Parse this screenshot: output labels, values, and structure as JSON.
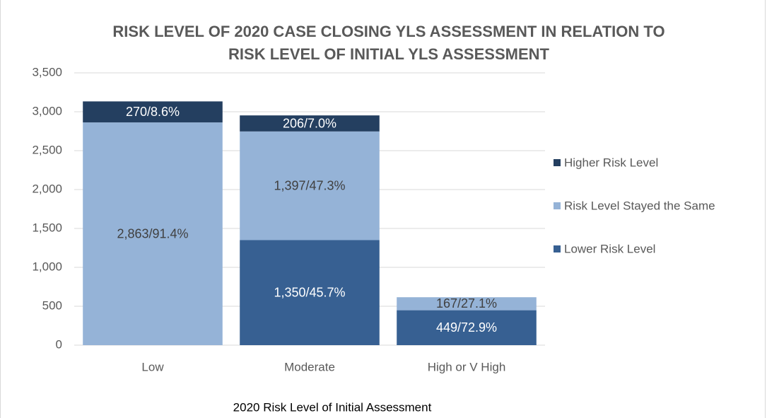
{
  "chart_data": {
    "type": "stacked_bar",
    "title": [
      "RISK LEVEL OF 2020 CASE CLOSING YLS ASSESSMENT IN RELATION TO",
      "RISK LEVEL OF INITIAL YLS ASSESSMENT"
    ],
    "x_label": "2020 Risk Level of Initial Assessment",
    "categories": [
      "Low",
      "Moderate",
      "High or V High"
    ],
    "series": [
      {
        "name": "Lower Risk Level",
        "color": "#376092",
        "label_color": "#ffffff",
        "values": [
          null,
          1350,
          449
        ],
        "value_labels": [
          null,
          "1,350/45.7%",
          "449/72.9%"
        ]
      },
      {
        "name": "Risk Level Stayed the Same",
        "color": "#95b3d7",
        "label_color": "#404040",
        "values": [
          2863,
          1397,
          167
        ],
        "value_labels": [
          "2,863/91.4%",
          "1,397/47.3%",
          "167/27.1%"
        ]
      },
      {
        "name": "Higher Risk Level",
        "color": "#243f60",
        "label_color": "#ffffff",
        "values": [
          270,
          206,
          null
        ],
        "value_labels": [
          "270/8.6%",
          "206/7.0%",
          null
        ]
      }
    ],
    "ylim": [
      0,
      3500
    ],
    "yticks": [
      0,
      500,
      {
        "value": 1000,
        "label": "1,000"
      },
      {
        "value": 1500,
        "label": "1,500"
      },
      {
        "value": 2000,
        "label": "2,000"
      },
      {
        "value": 2500,
        "label": "2,500"
      },
      {
        "value": 3000,
        "label": "3,000"
      },
      {
        "value": 3500,
        "label": "3,500"
      }
    ],
    "grid": true,
    "legend": "right"
  }
}
